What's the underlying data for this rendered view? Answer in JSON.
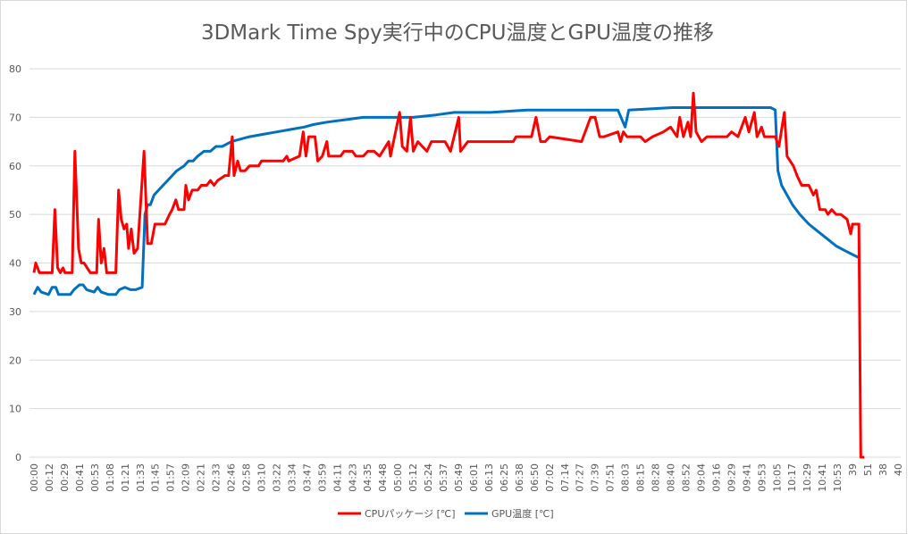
{
  "chart_data": {
    "type": "line",
    "title": "3DMark Time Spy実行中のCPU温度とGPU温度の推移",
    "xlabel": "",
    "ylabel": "",
    "ylim": [
      0,
      80
    ],
    "yticks": [
      0,
      10,
      20,
      30,
      40,
      50,
      60,
      70,
      80
    ],
    "grid": true,
    "legend_position": "bottom",
    "categories": [
      "00:00",
      "00:12",
      "00:29",
      "00:41",
      "00:53",
      "01:08",
      "01:21",
      "01:33",
      "01:45",
      "01:57",
      "02:09",
      "02:21",
      "02:33",
      "02:46",
      "02:58",
      "03:10",
      "03:22",
      "03:34",
      "03:47",
      "03:59",
      "04:11",
      "04:23",
      "04:35",
      "04:48",
      "05:00",
      "05:12",
      "05:24",
      "05:37",
      "05:49",
      "06:01",
      "06:13",
      "06:25",
      "06:38",
      "06:50",
      "07:02",
      "07:14",
      "07:27",
      "07:39",
      "07:51",
      "08:03",
      "08:15",
      "08:28",
      "08:40",
      "08:52",
      "09:04",
      "09:16",
      "09:29",
      "09:41",
      "09:53",
      "10:05",
      "10:17",
      "10:29",
      "10:41",
      "10:53",
      "39",
      "51",
      "38",
      "40"
    ],
    "x_units": "category index",
    "series": [
      {
        "name": "CPUパッケージ [℃]",
        "color": "#ff0000",
        "points": [
          [
            0,
            38
          ],
          [
            0.12,
            40
          ],
          [
            0.36,
            38
          ],
          [
            1.2,
            38
          ],
          [
            1.38,
            51
          ],
          [
            1.56,
            39
          ],
          [
            1.74,
            38
          ],
          [
            1.92,
            39
          ],
          [
            2.04,
            38
          ],
          [
            2.52,
            38
          ],
          [
            2.7,
            63
          ],
          [
            2.94,
            43
          ],
          [
            3.12,
            40
          ],
          [
            3.3,
            40
          ],
          [
            3.72,
            38
          ],
          [
            4.14,
            38
          ],
          [
            4.26,
            49
          ],
          [
            4.44,
            40
          ],
          [
            4.62,
            43
          ],
          [
            4.8,
            38
          ],
          [
            5.4,
            38
          ],
          [
            5.58,
            55
          ],
          [
            5.76,
            49
          ],
          [
            5.94,
            47
          ],
          [
            6.12,
            48
          ],
          [
            6.24,
            43
          ],
          [
            6.42,
            47
          ],
          [
            6.6,
            42
          ],
          [
            6.84,
            43
          ],
          [
            7.26,
            63
          ],
          [
            7.5,
            44
          ],
          [
            7.74,
            44
          ],
          [
            7.98,
            48
          ],
          [
            8.64,
            48
          ],
          [
            8.94,
            50
          ],
          [
            9.12,
            51
          ],
          [
            9.36,
            53
          ],
          [
            9.54,
            51
          ],
          [
            9.9,
            51
          ],
          [
            10.02,
            56
          ],
          [
            10.2,
            53
          ],
          [
            10.44,
            55
          ],
          [
            10.8,
            55
          ],
          [
            11.04,
            56
          ],
          [
            11.4,
            56
          ],
          [
            11.64,
            57
          ],
          [
            11.88,
            56
          ],
          [
            12.12,
            57
          ],
          [
            12.6,
            58
          ],
          [
            12.84,
            58
          ],
          [
            13.08,
            66
          ],
          [
            13.2,
            58
          ],
          [
            13.44,
            61
          ],
          [
            13.62,
            59
          ],
          [
            13.92,
            59
          ],
          [
            14.22,
            60
          ],
          [
            14.82,
            60
          ],
          [
            15,
            61
          ],
          [
            15.24,
            61
          ],
          [
            16.44,
            61
          ],
          [
            16.68,
            62
          ],
          [
            16.8,
            61
          ],
          [
            17.52,
            62
          ],
          [
            17.76,
            67
          ],
          [
            17.94,
            62
          ],
          [
            18.12,
            66
          ],
          [
            18.54,
            66
          ],
          [
            18.72,
            61
          ],
          [
            19.02,
            62
          ],
          [
            19.32,
            65
          ],
          [
            19.44,
            62
          ],
          [
            20.22,
            62
          ],
          [
            20.46,
            63
          ],
          [
            21,
            63
          ],
          [
            21.24,
            62
          ],
          [
            21.72,
            62
          ],
          [
            22.02,
            63
          ],
          [
            22.44,
            63
          ],
          [
            22.8,
            62
          ],
          [
            23.4,
            65
          ],
          [
            23.52,
            62
          ],
          [
            24.12,
            71
          ],
          [
            24.3,
            64
          ],
          [
            24.6,
            63
          ],
          [
            24.84,
            70
          ],
          [
            25.02,
            63
          ],
          [
            25.32,
            65
          ],
          [
            25.92,
            63
          ],
          [
            26.22,
            65
          ],
          [
            27.12,
            65
          ],
          [
            27.48,
            63
          ],
          [
            28.02,
            70
          ],
          [
            28.14,
            63
          ],
          [
            28.62,
            65
          ],
          [
            31.62,
            65
          ],
          [
            31.8,
            66
          ],
          [
            32.82,
            66
          ],
          [
            33.12,
            70
          ],
          [
            33.42,
            65
          ],
          [
            33.72,
            65
          ],
          [
            34.02,
            66
          ],
          [
            36.12,
            65
          ],
          [
            36.72,
            70
          ],
          [
            37.02,
            70
          ],
          [
            37.32,
            66
          ],
          [
            37.62,
            66
          ],
          [
            38.52,
            67
          ],
          [
            38.7,
            65
          ],
          [
            38.88,
            67
          ],
          [
            39.12,
            66
          ],
          [
            40.02,
            66
          ],
          [
            40.32,
            65
          ],
          [
            40.8,
            66
          ],
          [
            41.52,
            67
          ],
          [
            42,
            68
          ],
          [
            42.42,
            66
          ],
          [
            42.6,
            70
          ],
          [
            42.84,
            66
          ],
          [
            43.14,
            69
          ],
          [
            43.32,
            66
          ],
          [
            43.5,
            75
          ],
          [
            43.68,
            67
          ],
          [
            44.04,
            65
          ],
          [
            44.4,
            66
          ],
          [
            45.72,
            66
          ],
          [
            46.02,
            67
          ],
          [
            46.44,
            66
          ],
          [
            46.92,
            70
          ],
          [
            47.16,
            67
          ],
          [
            47.52,
            71
          ],
          [
            47.7,
            66
          ],
          [
            48,
            68
          ],
          [
            48.18,
            66
          ],
          [
            48.9,
            66
          ],
          [
            49.14,
            64
          ],
          [
            49.5,
            71
          ],
          [
            49.68,
            62
          ],
          [
            50.1,
            60
          ],
          [
            50.34,
            58
          ],
          [
            50.64,
            56
          ],
          [
            51.12,
            56
          ],
          [
            51.42,
            54
          ],
          [
            51.6,
            55
          ],
          [
            51.84,
            51
          ],
          [
            52.2,
            51
          ],
          [
            52.38,
            50
          ],
          [
            52.62,
            51
          ],
          [
            52.92,
            50
          ],
          [
            53.22,
            50
          ],
          [
            53.64,
            49
          ],
          [
            53.88,
            46
          ],
          [
            54,
            48
          ],
          [
            54.42,
            48
          ],
          [
            54.54,
            0
          ],
          [
            54.78,
            0
          ]
        ]
      },
      {
        "name": "GPU温度 [℃]",
        "color": "#0070c0",
        "points": [
          [
            0,
            33.5
          ],
          [
            0.24,
            35
          ],
          [
            0.48,
            34
          ],
          [
            0.96,
            33.5
          ],
          [
            1.2,
            35
          ],
          [
            1.44,
            35
          ],
          [
            1.62,
            33.5
          ],
          [
            2.4,
            33.5
          ],
          [
            2.64,
            34.5
          ],
          [
            3,
            35.5
          ],
          [
            3.24,
            35.5
          ],
          [
            3.48,
            34.5
          ],
          [
            3.96,
            34
          ],
          [
            4.2,
            35
          ],
          [
            4.44,
            34
          ],
          [
            4.92,
            33.5
          ],
          [
            5.4,
            33.5
          ],
          [
            5.64,
            34.5
          ],
          [
            6,
            35
          ],
          [
            6.36,
            34.5
          ],
          [
            6.72,
            34.5
          ],
          [
            7.14,
            35
          ],
          [
            7.32,
            50
          ],
          [
            7.5,
            52
          ],
          [
            7.68,
            52
          ],
          [
            7.92,
            54
          ],
          [
            8.22,
            55
          ],
          [
            8.52,
            56
          ],
          [
            8.82,
            57
          ],
          [
            9.12,
            58
          ],
          [
            9.42,
            59
          ],
          [
            9.9,
            60
          ],
          [
            10.2,
            61
          ],
          [
            10.5,
            61
          ],
          [
            10.8,
            62
          ],
          [
            11.22,
            63
          ],
          [
            11.64,
            63
          ],
          [
            12,
            64
          ],
          [
            12.42,
            64
          ],
          [
            13.02,
            65
          ],
          [
            13.62,
            65.5
          ],
          [
            14.22,
            66
          ],
          [
            15.12,
            66.5
          ],
          [
            16.02,
            67
          ],
          [
            16.92,
            67.5
          ],
          [
            17.82,
            68
          ],
          [
            18.42,
            68.5
          ],
          [
            19.32,
            69
          ],
          [
            20.52,
            69.5
          ],
          [
            21.72,
            70
          ],
          [
            23.52,
            70
          ],
          [
            25.02,
            70
          ],
          [
            26.52,
            70.5
          ],
          [
            27.72,
            71
          ],
          [
            30.12,
            71
          ],
          [
            32.52,
            71.5
          ],
          [
            35.52,
            71.5
          ],
          [
            38.52,
            71.5
          ],
          [
            39,
            68
          ],
          [
            39.24,
            71.5
          ],
          [
            42.12,
            72
          ],
          [
            45.72,
            72
          ],
          [
            47.52,
            72
          ],
          [
            48.6,
            72
          ],
          [
            48.9,
            71.5
          ],
          [
            49.08,
            59
          ],
          [
            49.32,
            56
          ],
          [
            49.68,
            54
          ],
          [
            50.04,
            52
          ],
          [
            50.52,
            50
          ],
          [
            51.12,
            48
          ],
          [
            51.72,
            46.5
          ],
          [
            52.32,
            45
          ],
          [
            52.92,
            43.5
          ],
          [
            53.52,
            42.5
          ],
          [
            54.48,
            41
          ]
        ]
      }
    ]
  }
}
